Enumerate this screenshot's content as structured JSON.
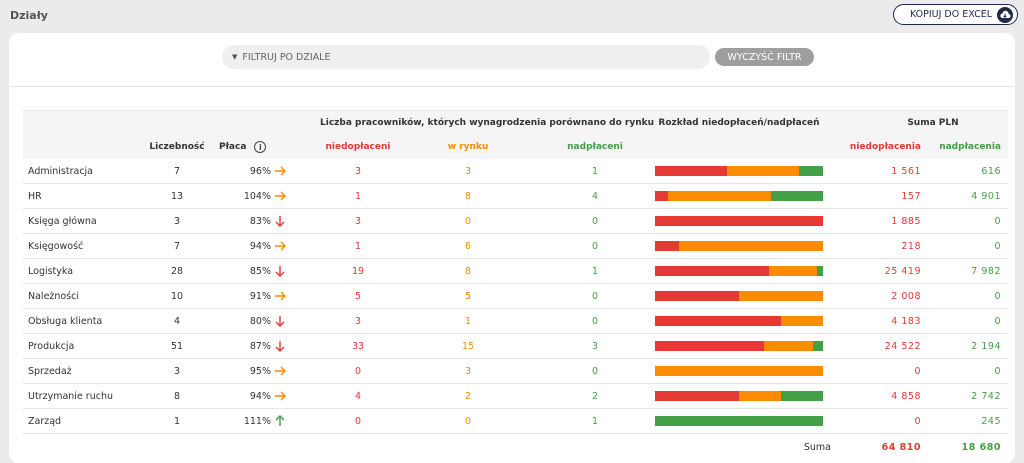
{
  "page": {
    "title": "Działy"
  },
  "toolbar": {
    "export_label": "KOPIUJ DO EXCEL",
    "export_icon": "cloud-download-icon"
  },
  "filter": {
    "placeholder": "FILTRUJ PO DZIALE",
    "clear_label": "WYCZYŚĆ FILTR"
  },
  "table": {
    "group_headers": {
      "compared": "Liczba pracowników, których wynagrodzenia porównano do rynku",
      "distribution": "Rozkład niedopłaceń/nadpłaceń",
      "sum": "Suma PLN"
    },
    "columns": {
      "count": "Liczebność",
      "pay": "Płaca",
      "underpaid": "niedopłaceni",
      "market": "w rynku",
      "overpaid": "nadpłaceni",
      "sum_underpaid": "niedopłacenia",
      "sum_overpaid": "nadpłacenia"
    },
    "colors": {
      "red": "#e53935",
      "orange": "#fb8c00",
      "green": "#43a047"
    },
    "rows": [
      {
        "name": "Administracja",
        "count": "7",
        "pay": "96%",
        "trend": "right",
        "under": 3,
        "market": 3,
        "over": 1,
        "sum_under": "1 561",
        "sum_over": "616"
      },
      {
        "name": "HR",
        "count": "13",
        "pay": "104%",
        "trend": "right",
        "under": 1,
        "market": 8,
        "over": 4,
        "sum_under": "157",
        "sum_over": "4 901"
      },
      {
        "name": "Księga główna",
        "count": "3",
        "pay": "83%",
        "trend": "down",
        "under": 3,
        "market": 0,
        "over": 0,
        "sum_under": "1 885",
        "sum_over": "0"
      },
      {
        "name": "Księgowość",
        "count": "7",
        "pay": "94%",
        "trend": "right",
        "under": 1,
        "market": 6,
        "over": 0,
        "sum_under": "218",
        "sum_over": "0"
      },
      {
        "name": "Logistyka",
        "count": "28",
        "pay": "85%",
        "trend": "down",
        "under": 19,
        "market": 8,
        "over": 1,
        "sum_under": "25 419",
        "sum_over": "7 982"
      },
      {
        "name": "Należności",
        "count": "10",
        "pay": "91%",
        "trend": "right",
        "under": 5,
        "market": 5,
        "over": 0,
        "sum_under": "2 008",
        "sum_over": "0"
      },
      {
        "name": "Obsługa klienta",
        "count": "4",
        "pay": "80%",
        "trend": "down",
        "under": 3,
        "market": 1,
        "over": 0,
        "sum_under": "4 183",
        "sum_over": "0"
      },
      {
        "name": "Produkcja",
        "count": "51",
        "pay": "87%",
        "trend": "down",
        "under": 33,
        "market": 15,
        "over": 3,
        "sum_under": "24 522",
        "sum_over": "2 194"
      },
      {
        "name": "Sprzedaż",
        "count": "3",
        "pay": "95%",
        "trend": "right",
        "under": 0,
        "market": 3,
        "over": 0,
        "sum_under": "0",
        "sum_over": "0"
      },
      {
        "name": "Utrzymanie ruchu",
        "count": "8",
        "pay": "94%",
        "trend": "right",
        "under": 4,
        "market": 2,
        "over": 2,
        "sum_under": "4 858",
        "sum_over": "2 742"
      },
      {
        "name": "Zarząd",
        "count": "1",
        "pay": "111%",
        "trend": "up",
        "under": 0,
        "market": 0,
        "over": 1,
        "sum_under": "0",
        "sum_over": "245"
      }
    ],
    "sum": {
      "label": "Suma",
      "under": "64 810",
      "over": "18 680"
    }
  }
}
